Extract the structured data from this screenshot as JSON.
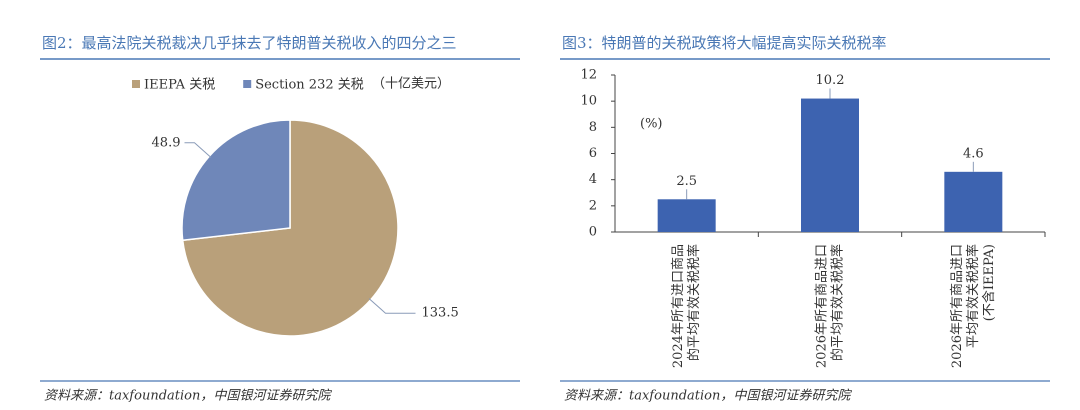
{
  "chart_data": [
    {
      "type": "pie",
      "title": "图2：最高法院关税裁决几乎抹去了特朗普关税收入的四分之三",
      "unit": "（十亿美元）",
      "categories": [
        "IEEPA 关税",
        "Section 232 关税"
      ],
      "values": [
        133.5,
        48.9
      ],
      "colors": [
        "#b9a07a",
        "#6f87b9"
      ],
      "source": "资料来源：taxfoundation，中国银河证券研究院"
    },
    {
      "type": "bar",
      "title": "图3：特朗普的关税政策将大幅提高实际关税税率",
      "annotation": "(%)",
      "categories": [
        [
          "2024年所有进口商品",
          "的平均有效关税税率"
        ],
        [
          "2026年所有商品进口",
          "的平均有效关税税率"
        ],
        [
          "2026年所有商品进口",
          "平均有效关税税率",
          "(不含IEEPA)"
        ]
      ],
      "values": [
        2.5,
        10.2,
        4.6
      ],
      "color": "#3d63b0",
      "ylim": [
        0,
        12
      ],
      "yticks": [
        0,
        2,
        4,
        6,
        8,
        10,
        12
      ],
      "source": "资料来源：taxfoundation，中国银河证券研究院"
    }
  ]
}
